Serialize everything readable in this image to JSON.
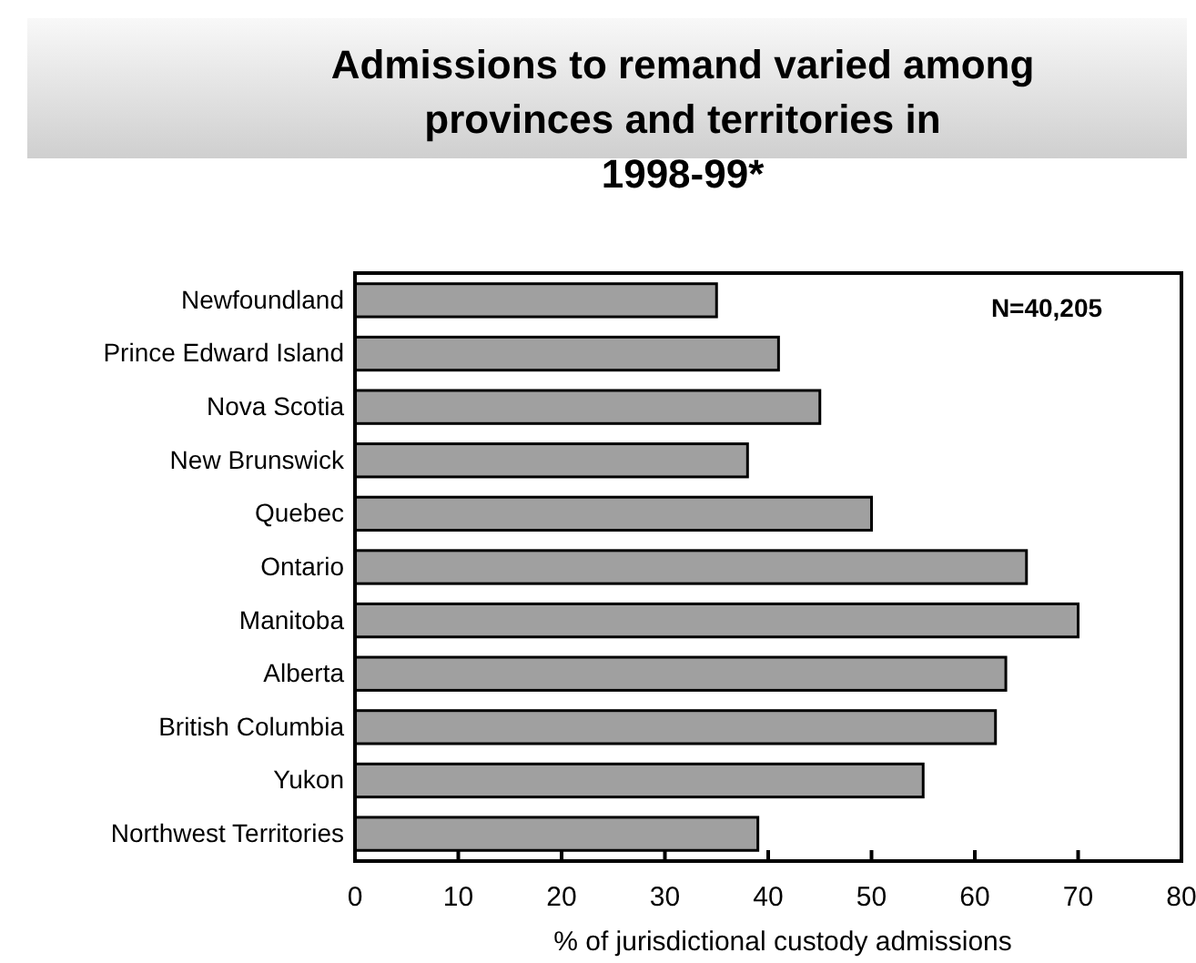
{
  "chart_data": {
    "type": "bar",
    "orientation": "horizontal",
    "title": "Admissions to remand varied among provinces and territories in 1998-99*",
    "xlabel": "% of jurisdictional custody admissions",
    "categories": [
      "Newfoundland",
      "Prince Edward Island",
      "Nova Scotia",
      "New Brunswick",
      "Quebec",
      "Ontario",
      "Manitoba",
      "Alberta",
      "British Columbia",
      "Yukon",
      "Northwest Territories"
    ],
    "values": [
      35,
      41,
      45,
      38,
      50,
      65,
      70,
      63,
      62,
      55,
      39
    ],
    "color": "#a0a0a0",
    "xlim": [
      0,
      80
    ],
    "xticks": [
      0,
      10,
      20,
      30,
      40,
      50,
      60,
      70,
      80
    ],
    "grid": false,
    "annotations": [
      "N=40,205"
    ]
  }
}
